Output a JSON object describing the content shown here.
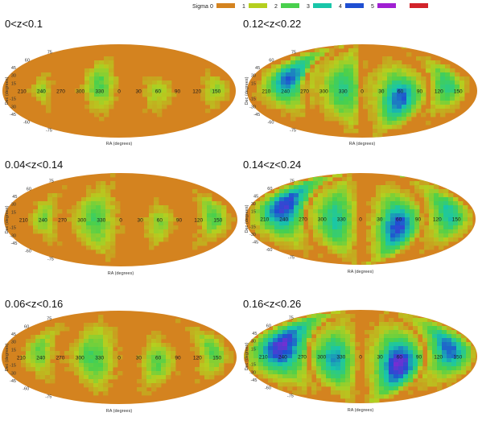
{
  "legend": {
    "title": "Sigma",
    "levels": [
      {
        "label": "0",
        "color": "#d4831f"
      },
      {
        "label": "1",
        "color": "#b5cf1f"
      },
      {
        "label": "2",
        "color": "#49d04d"
      },
      {
        "label": "3",
        "color": "#19c6a9"
      },
      {
        "label": "4",
        "color": "#1f4fd2"
      },
      {
        "label": "5",
        "color": "#a01fd2"
      },
      {
        "label": "",
        "color": "#d2232a"
      }
    ]
  },
  "chart_data": [
    {
      "type": "heatmap",
      "projection": "mollweide",
      "title": "0<z<0.1",
      "xlabel": "RA (degrees)",
      "ylabel": "Dec (degrees)",
      "ra_ticks": [
        "210",
        "240",
        "270",
        "300",
        "330",
        "0",
        "30",
        "60",
        "90",
        "120",
        "150"
      ],
      "dec_ticks": [
        "75",
        "60",
        "45",
        "30",
        "15",
        "0",
        "-15",
        "-30",
        "-45",
        "-60",
        "-75"
      ],
      "xlim": [
        -180,
        180
      ],
      "ylim": [
        -90,
        90
      ],
      "blobs": [
        {
          "ra": 330,
          "dec": 10,
          "sigma_ra": 16,
          "sigma_dec": 30,
          "peak": 2.0
        },
        {
          "ra": 240,
          "dec": 0,
          "sigma_ra": 10,
          "sigma_dec": 20,
          "peak": 1.3
        },
        {
          "ra": 60,
          "dec": -5,
          "sigma_ra": 15,
          "sigma_dec": 22,
          "peak": 1.2
        },
        {
          "ra": 150,
          "dec": 0,
          "sigma_ra": 12,
          "sigma_dec": 22,
          "peak": 1.3
        }
      ]
    },
    {
      "type": "heatmap",
      "projection": "mollweide",
      "title": "0.12<z<0.22",
      "xlabel": "RA (degrees)",
      "ylabel": "Dec (degrees)",
      "ra_ticks": [
        "210",
        "240",
        "270",
        "300",
        "330",
        "0",
        "30",
        "60",
        "90",
        "120",
        "150"
      ],
      "dec_ticks": [
        "75",
        "60",
        "45",
        "30",
        "15",
        "0",
        "-15",
        "-30",
        "-45",
        "-60",
        "-75"
      ],
      "xlim": [
        -180,
        180
      ],
      "ylim": [
        -90,
        90
      ],
      "blobs": [
        {
          "ra": 240,
          "dec": 25,
          "sigma_ra": 22,
          "sigma_dec": 35,
          "peak": 3.8
        },
        {
          "ra": 60,
          "dec": -15,
          "sigma_ra": 22,
          "sigma_dec": 35,
          "peak": 3.9
        },
        {
          "ra": 330,
          "dec": 5,
          "sigma_ra": 22,
          "sigma_dec": 45,
          "peak": 2.5
        },
        {
          "ra": 135,
          "dec": 10,
          "sigma_ra": 16,
          "sigma_dec": 30,
          "peak": 2.6
        }
      ],
      "zero_bands": [
        {
          "ra": 270
        },
        {
          "ra": 0
        },
        {
          "ra": 105
        },
        {
          "ra": 180
        }
      ]
    },
    {
      "type": "heatmap",
      "projection": "mollweide",
      "title": "0.04<z<0.14",
      "xlabel": "RA (degrees)",
      "ylabel": "Dec (degrees)",
      "ra_ticks": [
        "210",
        "240",
        "270",
        "300",
        "330",
        "0",
        "30",
        "60",
        "90",
        "120",
        "150"
      ],
      "dec_ticks": [
        "75",
        "60",
        "45",
        "30",
        "15",
        "0",
        "-15",
        "-30",
        "-45",
        "-60",
        "-75"
      ],
      "xlim": [
        -180,
        180
      ],
      "ylim": [
        -90,
        90
      ],
      "blobs": [
        {
          "ra": 320,
          "dec": 0,
          "sigma_ra": 20,
          "sigma_dec": 40,
          "peak": 2.1
        },
        {
          "ra": 240,
          "dec": 5,
          "sigma_ra": 12,
          "sigma_dec": 28,
          "peak": 1.6
        },
        {
          "ra": 60,
          "dec": -10,
          "sigma_ra": 14,
          "sigma_dec": 25,
          "peak": 1.5
        },
        {
          "ra": 145,
          "dec": 5,
          "sigma_ra": 14,
          "sigma_dec": 28,
          "peak": 2.0
        }
      ]
    },
    {
      "type": "heatmap",
      "projection": "mollweide",
      "title": "0.14<z<0.24",
      "xlabel": "RA (degrees)",
      "ylabel": "Dec (degrees)",
      "ra_ticks": [
        "210",
        "240",
        "270",
        "300",
        "330",
        "0",
        "30",
        "60",
        "90",
        "120",
        "150"
      ],
      "dec_ticks": [
        "75",
        "60",
        "45",
        "30",
        "15",
        "0",
        "-15",
        "-30",
        "-45",
        "-60",
        "-75"
      ],
      "xlim": [
        -180,
        180
      ],
      "ylim": [
        -90,
        90
      ],
      "blobs": [
        {
          "ra": 235,
          "dec": 25,
          "sigma_ra": 25,
          "sigma_dec": 40,
          "peak": 4.3
        },
        {
          "ra": 60,
          "dec": -15,
          "sigma_ra": 22,
          "sigma_dec": 40,
          "peak": 4.2
        },
        {
          "ra": 320,
          "dec": 0,
          "sigma_ra": 20,
          "sigma_dec": 45,
          "peak": 2.9
        },
        {
          "ra": 140,
          "dec": 10,
          "sigma_ra": 18,
          "sigma_dec": 35,
          "peak": 3.0
        }
      ],
      "zero_bands": [
        {
          "ra": 275
        },
        {
          "ra": 0
        },
        {
          "ra": 100
        },
        {
          "ra": 180
        }
      ]
    },
    {
      "type": "heatmap",
      "projection": "mollweide",
      "title": "0.06<z<0.16",
      "xlabel": "RA (degrees)",
      "ylabel": "Dec (degrees)",
      "ra_ticks": [
        "210",
        "240",
        "270",
        "300",
        "330",
        "0",
        "30",
        "60",
        "90",
        "120",
        "150"
      ],
      "dec_ticks": [
        "75",
        "60",
        "45",
        "30",
        "15",
        "0",
        "-15",
        "-30",
        "-45",
        "-60",
        "-75"
      ],
      "xlim": [
        -180,
        180
      ],
      "ylim": [
        -90,
        90
      ],
      "blobs": [
        {
          "ra": 320,
          "dec": 0,
          "sigma_ra": 20,
          "sigma_dec": 40,
          "peak": 2.2
        },
        {
          "ra": 235,
          "dec": 10,
          "sigma_ra": 14,
          "sigma_dec": 30,
          "peak": 1.8
        },
        {
          "ra": 60,
          "dec": -10,
          "sigma_ra": 16,
          "sigma_dec": 30,
          "peak": 1.9
        },
        {
          "ra": 145,
          "dec": 10,
          "sigma_ra": 14,
          "sigma_dec": 28,
          "peak": 2.0
        }
      ]
    },
    {
      "type": "heatmap",
      "projection": "mollweide",
      "title": "0.16<z<0.26",
      "xlabel": "RA (degrees)",
      "ylabel": "Dec (degrees)",
      "ra_ticks": [
        "210",
        "240",
        "270",
        "300",
        "330",
        "0",
        "30",
        "60",
        "90",
        "120",
        "150"
      ],
      "dec_ticks": [
        "75",
        "60",
        "45",
        "30",
        "15",
        "0",
        "-15",
        "-30",
        "-45",
        "-60",
        "-75"
      ],
      "xlim": [
        -180,
        180
      ],
      "ylim": [
        -90,
        90
      ],
      "blobs": [
        {
          "ra": 235,
          "dec": 20,
          "sigma_ra": 28,
          "sigma_dec": 40,
          "peak": 4.5
        },
        {
          "ra": 60,
          "dec": -15,
          "sigma_ra": 24,
          "sigma_dec": 40,
          "peak": 4.6
        },
        {
          "ra": 320,
          "dec": -5,
          "sigma_ra": 20,
          "sigma_dec": 40,
          "peak": 3.3
        },
        {
          "ra": 140,
          "dec": 15,
          "sigma_ra": 20,
          "sigma_dec": 35,
          "peak": 3.9
        }
      ],
      "zero_bands": [
        {
          "ra": 280
        },
        {
          "ra": 0
        },
        {
          "ra": 100
        },
        {
          "ra": 180
        }
      ]
    }
  ]
}
